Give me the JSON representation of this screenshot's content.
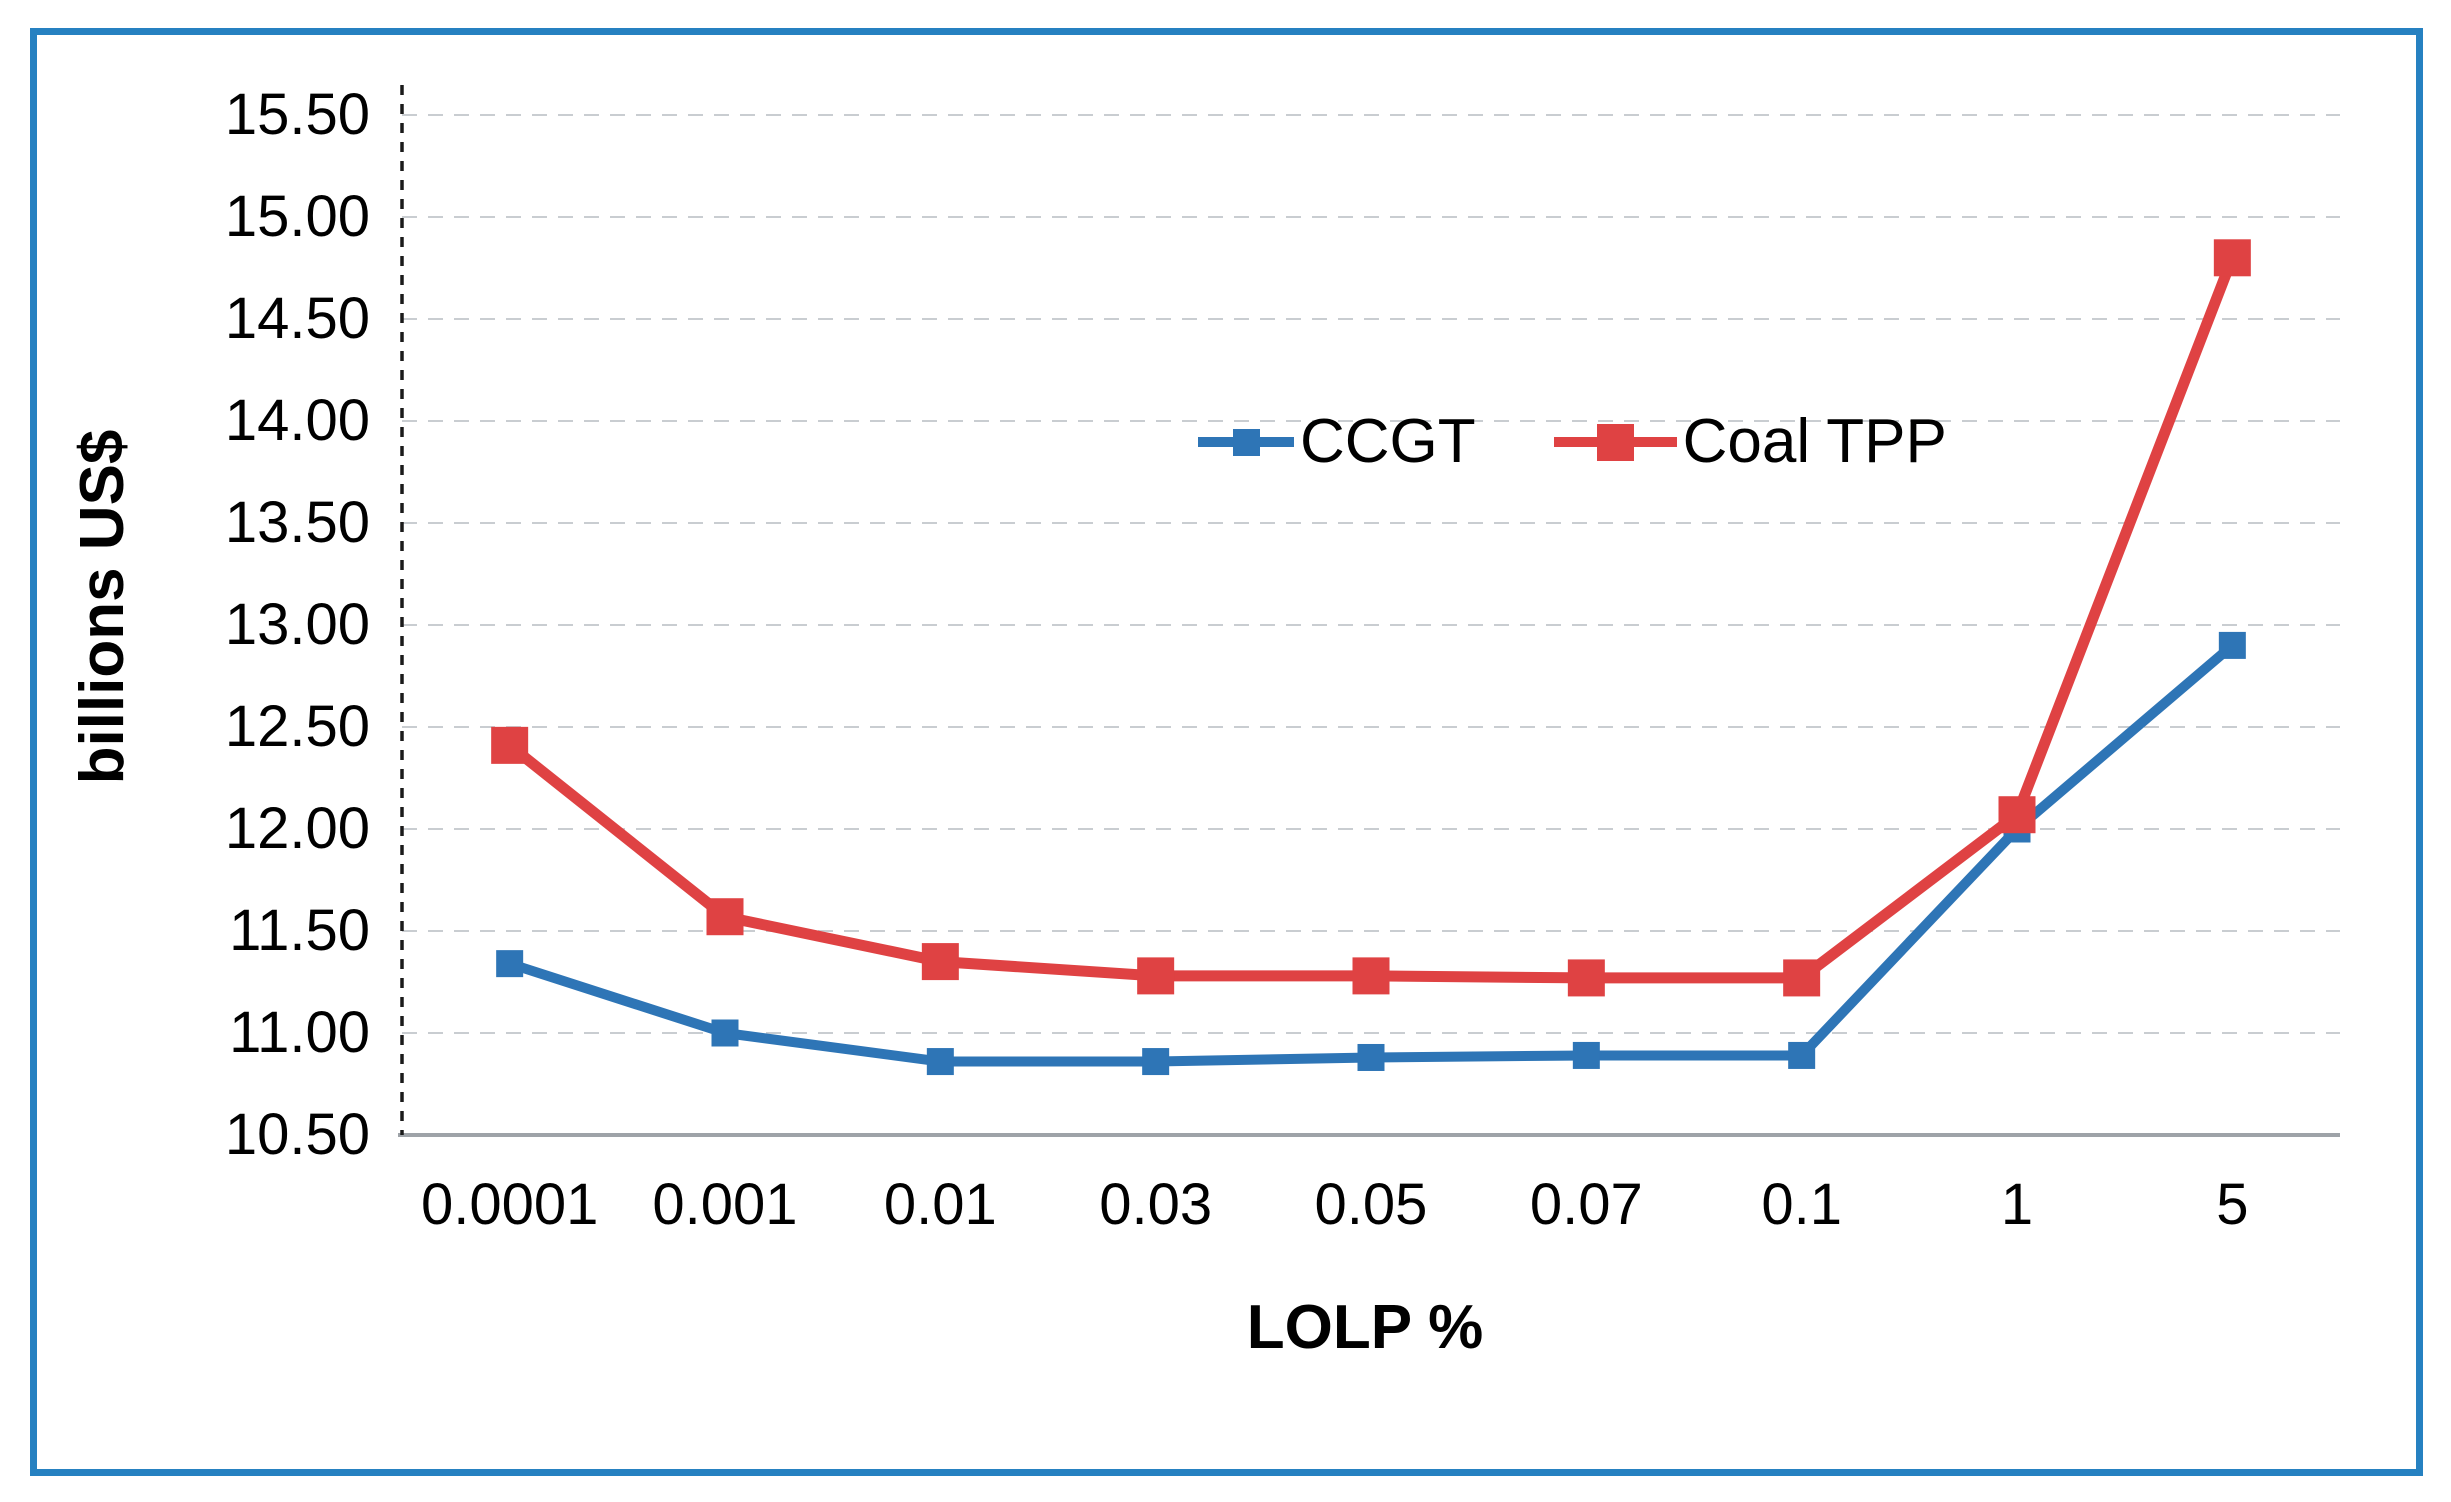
{
  "frame": {
    "border_color": "#2681C1",
    "background": "#ffffff"
  },
  "chart_data": {
    "type": "line",
    "title": "",
    "xlabel": "LOLP %",
    "ylabel": "billions US$",
    "categories": [
      "0.0001",
      "0.001",
      "0.01",
      "0.03",
      "0.05",
      "0.07",
      "0.1",
      "1",
      "5"
    ],
    "y_ticks": [
      "15.50",
      "15.00",
      "14.50",
      "14.00",
      "13.50",
      "13.00",
      "12.50",
      "12.00",
      "11.50",
      "11.00",
      "10.50"
    ],
    "ylim": [
      10.5,
      15.5
    ],
    "grid": "horizontal-dashed",
    "gridline_color": "#C9CDD1",
    "axis_line_color": "#9EA3A8",
    "y_axis_dashed_color": "#1a1a1a",
    "legend_position": "inside-top-center",
    "series": [
      {
        "name": "CCGT",
        "color": "#2E75B6",
        "marker": "square",
        "marker_size": 27,
        "line_width": 10,
        "values": [
          11.34,
          11.0,
          10.86,
          10.86,
          10.88,
          10.89,
          10.89,
          12.0,
          12.9
        ]
      },
      {
        "name": "Coal TPP",
        "color": "#DF4243",
        "marker": "square",
        "marker_size": 37,
        "line_width": 11,
        "values": [
          12.41,
          11.57,
          11.35,
          11.28,
          11.28,
          11.27,
          11.27,
          12.07,
          14.8
        ]
      }
    ]
  }
}
